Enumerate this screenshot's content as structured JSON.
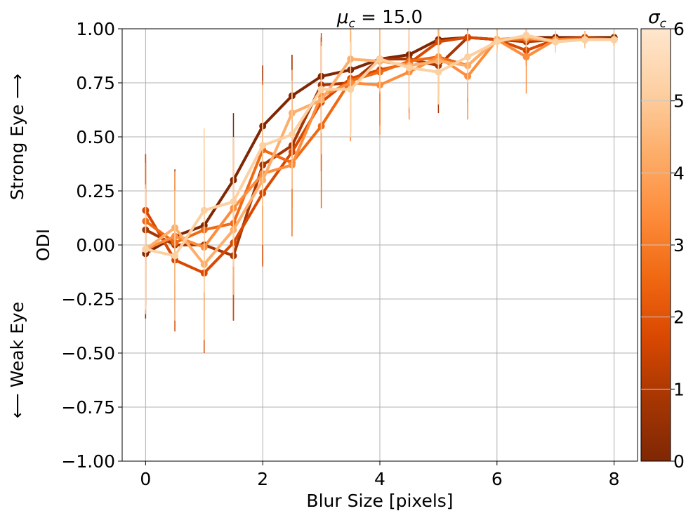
{
  "chart_data": {
    "type": "line",
    "title": "μ_c = 15.0",
    "title_parts": {
      "symbol": "μ",
      "sub": "c",
      "rest": " = 15.0"
    },
    "xlabel": "Blur Size [pixels]",
    "ylabel": "ODI",
    "ylabel_top": "Strong Eye ⟶",
    "ylabel_bottom": "⟵ Weak Eye",
    "xlim": [
      -0.4,
      8.4
    ],
    "ylim": [
      -1.0,
      1.0
    ],
    "xticks": [
      0,
      2,
      4,
      6,
      8
    ],
    "xtick_labels": [
      "0",
      "2",
      "4",
      "6",
      "8"
    ],
    "yticks": [
      -1.0,
      -0.75,
      -0.5,
      -0.25,
      0.0,
      0.25,
      0.5,
      0.75,
      1.0
    ],
    "ytick_labels": [
      "−1.00",
      "−0.75",
      "−0.50",
      "−0.25",
      "0.00",
      "0.25",
      "0.50",
      "0.75",
      "1.00"
    ],
    "grid": true,
    "x": [
      0,
      0.5,
      1,
      1.5,
      2,
      2.5,
      3,
      3.5,
      4,
      4.5,
      5,
      5.5,
      6,
      6.5,
      7,
      7.5,
      8
    ],
    "series": [
      {
        "color": "#7f2704",
        "values": [
          -0.04,
          0.04,
          0.09,
          0.3,
          0.55,
          0.69,
          0.78,
          0.81,
          0.86,
          0.88,
          0.95,
          0.96,
          0.95,
          0.96,
          0.96,
          0.96,
          0.96
        ],
        "err": [
          0.3,
          0.3,
          0.4,
          0.31,
          0.28,
          0.19,
          0.18,
          0.12,
          0.1,
          0.09,
          0.05,
          0.04,
          0.03,
          0.03,
          0.03,
          0.03,
          0.03
        ]
      },
      {
        "color": "#a63603",
        "values": [
          0.07,
          0.0,
          0.0,
          -0.05,
          0.37,
          0.46,
          0.74,
          0.75,
          0.86,
          0.86,
          0.83,
          0.96,
          0.95,
          0.94,
          0.95,
          0.96,
          0.95
        ],
        "err": [
          0.35,
          0.35,
          0.4,
          0.3,
          0.46,
          0.42,
          0.22,
          0.24,
          0.2,
          0.25,
          0.22,
          0.07,
          0.04,
          0.06,
          0.04,
          0.03,
          0.03
        ]
      },
      {
        "color": "#d94801",
        "values": [
          0.16,
          -0.07,
          -0.13,
          0.01,
          0.24,
          0.43,
          0.66,
          0.77,
          0.81,
          0.84,
          0.94,
          0.96,
          0.95,
          0.9,
          0.95,
          0.96,
          0.95
        ],
        "err": [
          0.26,
          0.33,
          0.37,
          0.36,
          0.34,
          0.26,
          0.32,
          0.25,
          0.25,
          0.23,
          0.12,
          0.05,
          0.04,
          0.07,
          0.04,
          0.03,
          0.03
        ]
      },
      {
        "color": "#f16913",
        "values": [
          0.11,
          0.01,
          0.07,
          0.1,
          0.44,
          0.38,
          0.55,
          0.76,
          0.8,
          0.85,
          0.87,
          0.83,
          0.95,
          0.95,
          0.95,
          0.95,
          0.95
        ],
        "err": [
          0.27,
          0.31,
          0.33,
          0.33,
          0.32,
          0.29,
          0.38,
          0.23,
          0.25,
          0.2,
          0.18,
          0.17,
          0.05,
          0.05,
          0.04,
          0.03,
          0.03
        ]
      },
      {
        "color": "#fd8d3c",
        "values": [
          -0.02,
          0.04,
          -0.01,
          0.17,
          0.33,
          0.37,
          0.69,
          0.75,
          0.74,
          0.8,
          0.87,
          0.78,
          0.95,
          0.87,
          0.95,
          0.95,
          0.95
        ],
        "err": [
          0.25,
          0.28,
          0.35,
          0.32,
          0.28,
          0.33,
          0.25,
          0.27,
          0.23,
          0.22,
          0.18,
          0.2,
          0.06,
          0.17,
          0.04,
          0.03,
          0.03
        ]
      },
      {
        "color": "#fdae6b",
        "values": [
          -0.02,
          0.08,
          -0.09,
          0.07,
          0.3,
          0.61,
          0.67,
          0.86,
          0.85,
          0.83,
          0.85,
          0.83,
          0.95,
          0.96,
          0.94,
          0.95,
          0.95
        ],
        "err": [
          0.3,
          0.26,
          0.35,
          0.3,
          0.3,
          0.2,
          0.25,
          0.15,
          0.15,
          0.2,
          0.15,
          0.15,
          0.06,
          0.06,
          0.05,
          0.04,
          0.04
        ]
      },
      {
        "color": "#fdd0a2",
        "values": [
          -0.02,
          -0.05,
          0.16,
          0.2,
          0.46,
          0.51,
          0.72,
          0.72,
          0.86,
          0.82,
          0.8,
          0.87,
          0.94,
          0.97,
          0.94,
          0.95,
          0.95
        ],
        "err": [
          0.28,
          0.3,
          0.38,
          0.3,
          0.28,
          0.25,
          0.2,
          0.22,
          0.15,
          0.18,
          0.15,
          0.12,
          0.05,
          0.05,
          0.05,
          0.04,
          0.04
        ]
      }
    ],
    "colorbar": {
      "label": "σ_c",
      "label_parts": {
        "symbol": "σ",
        "sub": "c"
      },
      "range": [
        0,
        6
      ],
      "ticks": [
        0,
        1,
        2,
        3,
        4,
        5,
        6
      ],
      "tick_labels": [
        "0",
        "1",
        "2",
        "3",
        "4",
        "5",
        "6"
      ],
      "colors": [
        "#7f2704",
        "#a63603",
        "#d94801",
        "#f16913",
        "#fd8d3c",
        "#fdae6b",
        "#fdd0a2",
        "#fee6ce"
      ]
    }
  }
}
